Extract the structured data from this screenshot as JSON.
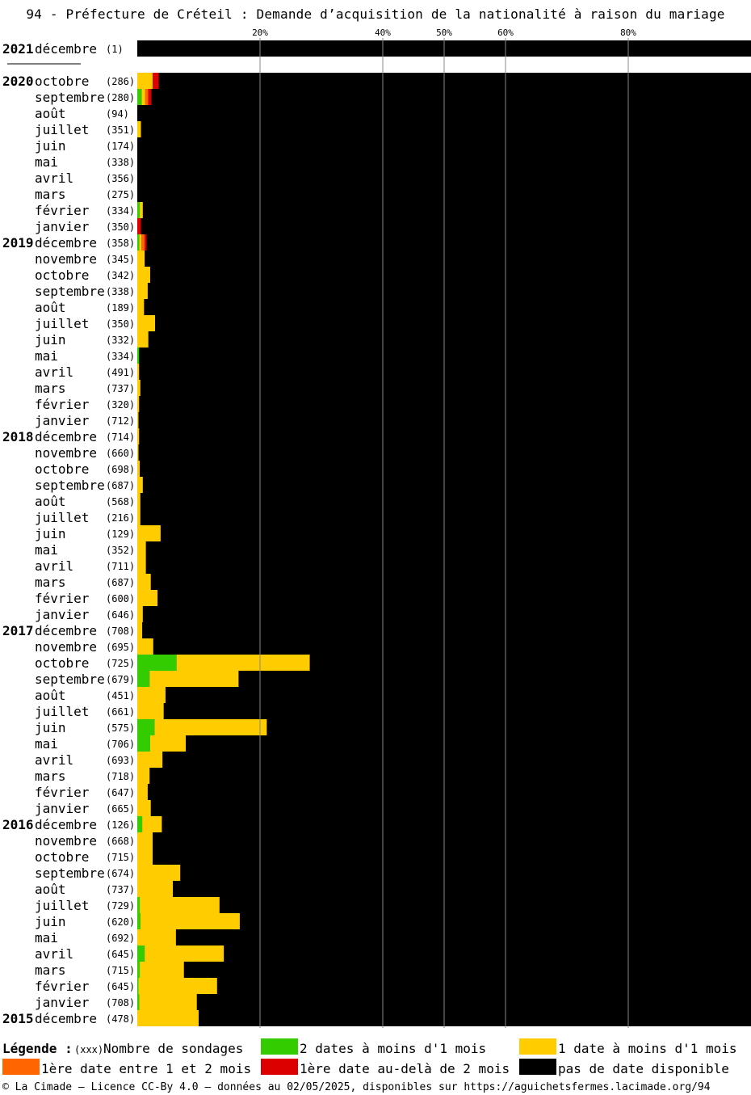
{
  "title": "94 - Préfecture de Créteil : Demande d’acquisition de la nationalité à raison du mariage",
  "legend": {
    "title": "Légende :",
    "count_marker": "(xxx)",
    "count_label": "Nombre de sondages",
    "items": [
      {
        "key": "green",
        "label": "2 dates à moins d'1 mois",
        "color": "#33cc00"
      },
      {
        "key": "yellow",
        "label": "1 date à moins d'1 mois",
        "color": "#ffcc00"
      },
      {
        "key": "orange",
        "label": "1ère date entre 1 et 2 mois",
        "color": "#ff6600"
      },
      {
        "key": "red",
        "label": "1ère date au-delà de 2 mois",
        "color": "#dd0000"
      },
      {
        "key": "black",
        "label": "pas de date disponible",
        "color": "#000000"
      }
    ]
  },
  "footer": "© La Cimade — Licence CC-By 4.0 — données au 02/05/2025, disponibles sur https://aguichetsfermes.lacimade.org/94",
  "chart_data": {
    "type": "bar",
    "orientation": "horizontal-stacked-100",
    "x_ticks": [
      20,
      40,
      50,
      60,
      80
    ],
    "x_tick_labels": [
      "20%",
      "40%",
      "50%",
      "60%",
      "80%"
    ],
    "xlim": [
      0,
      100
    ],
    "series_order": [
      "green",
      "yellow",
      "orange",
      "red",
      "black"
    ],
    "rows": [
      {
        "year": "2021",
        "month": "décembre",
        "count": "(1)",
        "green": 0,
        "yellow": 0,
        "orange": 0,
        "red": 0
      },
      {
        "separator": true
      },
      {
        "year": "2020",
        "month": "octobre",
        "count": "(286)",
        "green": 0,
        "yellow": 2.5,
        "orange": 0,
        "red": 1.0
      },
      {
        "month": "septembre",
        "count": "(280)",
        "green": 0.7,
        "yellow": 0.6,
        "orange": 0.5,
        "red": 0.5
      },
      {
        "month": "août",
        "count": "(94)",
        "green": 0,
        "yellow": 0,
        "orange": 0,
        "red": 0
      },
      {
        "month": "juillet",
        "count": "(351)",
        "green": 0,
        "yellow": 0.6,
        "orange": 0,
        "red": 0
      },
      {
        "month": "juin",
        "count": "(174)",
        "green": 0,
        "yellow": 0,
        "orange": 0,
        "red": 0
      },
      {
        "month": "mai",
        "count": "(338)",
        "green": 0,
        "yellow": 0,
        "orange": 0,
        "red": 0
      },
      {
        "month": "avril",
        "count": "(356)",
        "green": 0,
        "yellow": 0,
        "orange": 0,
        "red": 0
      },
      {
        "month": "mars",
        "count": "(275)",
        "green": 0,
        "yellow": 0,
        "orange": 0,
        "red": 0
      },
      {
        "month": "février",
        "count": "(334)",
        "green": 0.4,
        "yellow": 0.5,
        "orange": 0,
        "red": 0
      },
      {
        "month": "janvier",
        "count": "(350)",
        "green": 0,
        "yellow": 0,
        "orange": 0,
        "red": 0.6
      },
      {
        "year": "2019",
        "month": "décembre",
        "count": "(358)",
        "green": 0.3,
        "yellow": 0.4,
        "orange": 0.5,
        "red": 0.3
      },
      {
        "month": "novembre",
        "count": "(345)",
        "green": 0,
        "yellow": 1.2,
        "orange": 0,
        "red": 0
      },
      {
        "month": "octobre",
        "count": "(342)",
        "green": 0,
        "yellow": 2.1,
        "orange": 0,
        "red": 0
      },
      {
        "month": "septembre",
        "count": "(338)",
        "green": 0,
        "yellow": 1.7,
        "orange": 0,
        "red": 0
      },
      {
        "month": "août",
        "count": "(189)",
        "green": 0,
        "yellow": 1.1,
        "orange": 0,
        "red": 0
      },
      {
        "month": "juillet",
        "count": "(350)",
        "green": 0,
        "yellow": 2.9,
        "orange": 0,
        "red": 0
      },
      {
        "month": "juin",
        "count": "(332)",
        "green": 0,
        "yellow": 1.8,
        "orange": 0,
        "red": 0
      },
      {
        "month": "mai",
        "count": "(334)",
        "green": 0.3,
        "yellow": 0,
        "orange": 0,
        "red": 0
      },
      {
        "month": "avril",
        "count": "(491)",
        "green": 0,
        "yellow": 0.3,
        "orange": 0,
        "red": 0
      },
      {
        "month": "mars",
        "count": "(737)",
        "green": 0,
        "yellow": 0.5,
        "orange": 0,
        "red": 0
      },
      {
        "month": "février",
        "count": "(320)",
        "green": 0,
        "yellow": 0.3,
        "orange": 0,
        "red": 0
      },
      {
        "month": "janvier",
        "count": "(712)",
        "green": 0,
        "yellow": 0.2,
        "orange": 0,
        "red": 0
      },
      {
        "year": "2018",
        "month": "décembre",
        "count": "(714)",
        "green": 0,
        "yellow": 0.3,
        "orange": 0,
        "red": 0
      },
      {
        "month": "novembre",
        "count": "(660)",
        "green": 0,
        "yellow": 0.2,
        "orange": 0,
        "red": 0
      },
      {
        "month": "octobre",
        "count": "(698)",
        "green": 0,
        "yellow": 0.4,
        "orange": 0,
        "red": 0
      },
      {
        "month": "septembre",
        "count": "(687)",
        "green": 0,
        "yellow": 0.9,
        "orange": 0,
        "red": 0
      },
      {
        "month": "août",
        "count": "(568)",
        "green": 0,
        "yellow": 0.5,
        "orange": 0,
        "red": 0
      },
      {
        "month": "juillet",
        "count": "(216)",
        "green": 0,
        "yellow": 0.5,
        "orange": 0,
        "red": 0
      },
      {
        "month": "juin",
        "count": "(129)",
        "green": 0,
        "yellow": 3.8,
        "orange": 0,
        "red": 0
      },
      {
        "month": "mai",
        "count": "(352)",
        "green": 0,
        "yellow": 1.4,
        "orange": 0,
        "red": 0
      },
      {
        "month": "avril",
        "count": "(711)",
        "green": 0,
        "yellow": 1.4,
        "orange": 0,
        "red": 0
      },
      {
        "month": "mars",
        "count": "(687)",
        "green": 0,
        "yellow": 2.2,
        "orange": 0,
        "red": 0
      },
      {
        "month": "février",
        "count": "(600)",
        "green": 0,
        "yellow": 3.3,
        "orange": 0,
        "red": 0
      },
      {
        "month": "janvier",
        "count": "(646)",
        "green": 0,
        "yellow": 0.9,
        "orange": 0,
        "red": 0
      },
      {
        "year": "2017",
        "month": "décembre",
        "count": "(708)",
        "green": 0,
        "yellow": 0.8,
        "orange": 0,
        "red": 0
      },
      {
        "month": "novembre",
        "count": "(695)",
        "green": 0,
        "yellow": 2.6,
        "orange": 0,
        "red": 0
      },
      {
        "month": "octobre",
        "count": "(725)",
        "green": 6.4,
        "yellow": 21.7,
        "orange": 0,
        "red": 0
      },
      {
        "month": "septembre",
        "count": "(679)",
        "green": 2.0,
        "yellow": 14.5,
        "orange": 0,
        "red": 0
      },
      {
        "month": "août",
        "count": "(451)",
        "green": 0,
        "yellow": 4.6,
        "orange": 0,
        "red": 0
      },
      {
        "month": "juillet",
        "count": "(661)",
        "green": 0,
        "yellow": 4.3,
        "orange": 0,
        "red": 0
      },
      {
        "month": "juin",
        "count": "(575)",
        "green": 2.8,
        "yellow": 18.3,
        "orange": 0,
        "red": 0
      },
      {
        "month": "mai",
        "count": "(706)",
        "green": 2.1,
        "yellow": 5.8,
        "orange": 0,
        "red": 0
      },
      {
        "month": "avril",
        "count": "(693)",
        "green": 0,
        "yellow": 4.1,
        "orange": 0,
        "red": 0
      },
      {
        "month": "mars",
        "count": "(718)",
        "green": 0,
        "yellow": 2.0,
        "orange": 0,
        "red": 0
      },
      {
        "month": "février",
        "count": "(647)",
        "green": 0,
        "yellow": 1.7,
        "orange": 0,
        "red": 0
      },
      {
        "month": "janvier",
        "count": "(665)",
        "green": 0,
        "yellow": 2.2,
        "orange": 0,
        "red": 0
      },
      {
        "year": "2016",
        "month": "décembre",
        "count": "(126)",
        "green": 0.8,
        "yellow": 3.2,
        "orange": 0,
        "red": 0
      },
      {
        "month": "novembre",
        "count": "(668)",
        "green": 0,
        "yellow": 2.5,
        "orange": 0,
        "red": 0
      },
      {
        "month": "octobre",
        "count": "(715)",
        "green": 0,
        "yellow": 2.5,
        "orange": 0,
        "red": 0
      },
      {
        "month": "septembre",
        "count": "(674)",
        "green": 0,
        "yellow": 7.0,
        "orange": 0,
        "red": 0
      },
      {
        "month": "août",
        "count": "(737)",
        "green": 0,
        "yellow": 5.8,
        "orange": 0,
        "red": 0
      },
      {
        "month": "juillet",
        "count": "(729)",
        "green": 0.4,
        "yellow": 13.0,
        "orange": 0,
        "red": 0
      },
      {
        "month": "juin",
        "count": "(620)",
        "green": 0.5,
        "yellow": 16.2,
        "orange": 0,
        "red": 0
      },
      {
        "month": "mai",
        "count": "(692)",
        "green": 0,
        "yellow": 6.3,
        "orange": 0,
        "red": 0
      },
      {
        "month": "avril",
        "count": "(645)",
        "green": 1.2,
        "yellow": 12.9,
        "orange": 0,
        "red": 0
      },
      {
        "month": "mars",
        "count": "(715)",
        "green": 0.4,
        "yellow": 7.2,
        "orange": 0,
        "red": 0
      },
      {
        "month": "février",
        "count": "(645)",
        "green": 0.2,
        "yellow": 12.8,
        "orange": 0,
        "red": 0
      },
      {
        "month": "janvier",
        "count": "(708)",
        "green": 0.3,
        "yellow": 9.4,
        "orange": 0,
        "red": 0
      },
      {
        "year": "2015",
        "month": "décembre",
        "count": "(478)",
        "green": 0,
        "yellow": 10.0,
        "orange": 0,
        "red": 0
      }
    ]
  }
}
